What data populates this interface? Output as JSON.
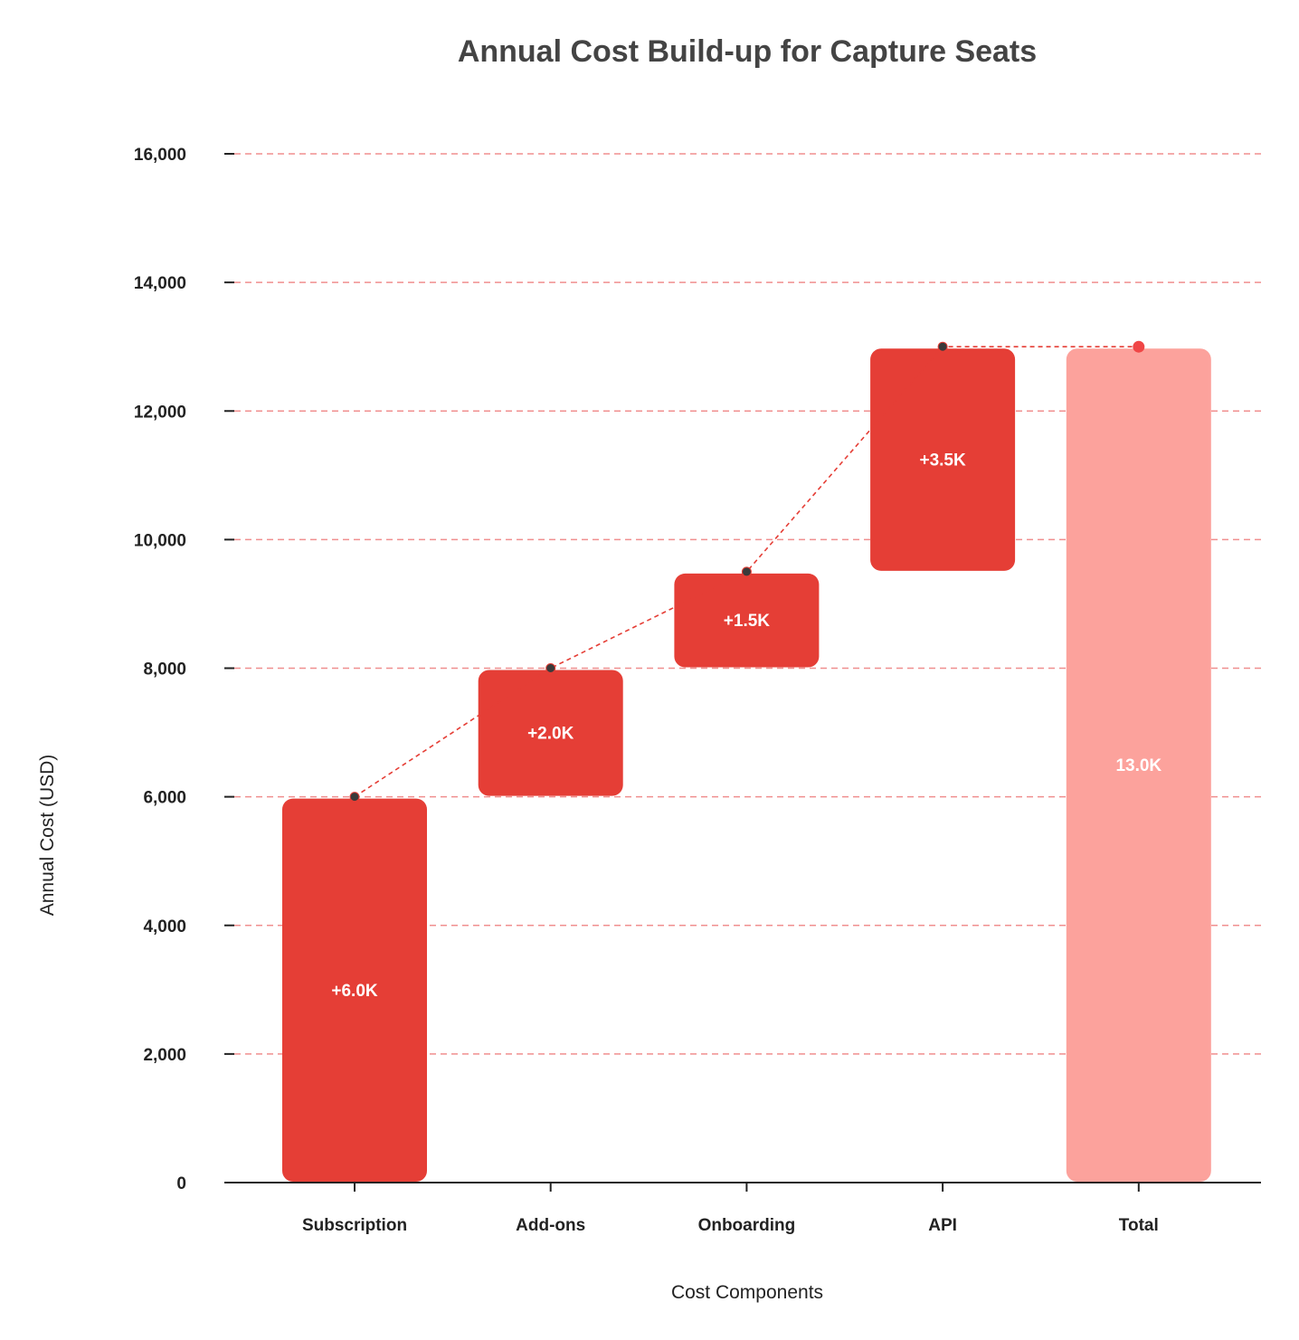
{
  "chart_data": {
    "type": "waterfall",
    "title": "Annual Cost Build-up for Capture Seats",
    "xlabel": "Cost Components",
    "ylabel": "Annual Cost (USD)",
    "ylim": [
      0,
      16000
    ],
    "yticks": [
      0,
      2000,
      4000,
      6000,
      8000,
      10000,
      12000,
      14000,
      16000
    ],
    "ytick_labels": [
      "0",
      "2,000",
      "4,000",
      "6,000",
      "8,000",
      "10,000",
      "12,000",
      "14,000",
      "16,000"
    ],
    "grid": true,
    "categories": [
      "Subscription",
      "Add-ons",
      "Onboarding",
      "API",
      "Total"
    ],
    "steps": [
      {
        "label": "Subscription",
        "start": 0,
        "end": 6000,
        "value": 6000,
        "data_label": "+6.0K",
        "kind": "increase"
      },
      {
        "label": "Add-ons",
        "start": 6000,
        "end": 8000,
        "value": 2000,
        "data_label": "+2.0K",
        "kind": "increase"
      },
      {
        "label": "Onboarding",
        "start": 8000,
        "end": 9500,
        "value": 1500,
        "data_label": "+1.5K",
        "kind": "increase"
      },
      {
        "label": "API",
        "start": 9500,
        "end": 13000,
        "value": 3500,
        "data_label": "+3.5K",
        "kind": "increase"
      },
      {
        "label": "Total",
        "start": 0,
        "end": 13000,
        "value": 13000,
        "data_label": "13.0K",
        "kind": "total"
      }
    ],
    "colors": {
      "increase": "#e53e36",
      "total": "#fca29c",
      "grid": "#f08f8f",
      "connector": "#e53e36",
      "marker": "#3a3a3a",
      "total_marker": "#f04646"
    }
  }
}
